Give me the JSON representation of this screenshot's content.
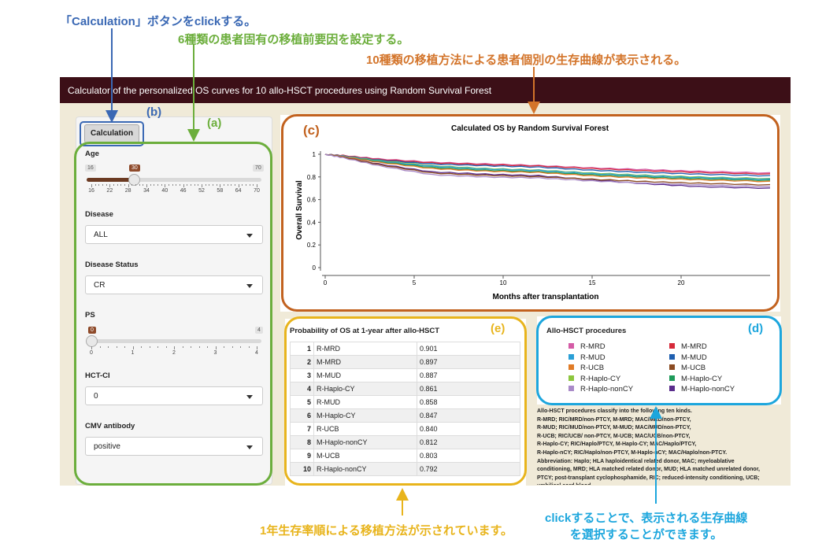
{
  "annotations": {
    "calc_click": "「Calculation」ボタンをclickする。",
    "set_factors": "6種類の患者固有の移植前要因を設定する。",
    "curves_shown": "10種類の移植方法による患者個別の生存曲線が表示される。",
    "ranked": "1年生存率順による移植方法が示されています。",
    "click_select_1": "clickすることで、表示される生存曲線",
    "click_select_2": "を選択することができます。"
  },
  "labels": {
    "a": "(a)",
    "b": "(b)",
    "c": "(c)",
    "d": "(d)",
    "e": "(e)"
  },
  "colors": {
    "blue": "#3a68b4",
    "green": "#6cae3c",
    "orange": "#c2621f",
    "yellow": "#e8b41c",
    "cyan": "#1ca6dd"
  },
  "app": {
    "title": "Calculator of the personalized OS curves for 10 allo-HSCT procedures using Random Survival Forest"
  },
  "sidebar": {
    "calc_button": "Calculation",
    "age": {
      "label": "Age",
      "min": "16",
      "max": "70",
      "value": "30",
      "ticks": [
        "16",
        "22",
        "28",
        "34",
        "40",
        "46",
        "52",
        "58",
        "64",
        "70"
      ]
    },
    "disease": {
      "label": "Disease",
      "value": "ALL"
    },
    "disease_status": {
      "label": "Disease Status",
      "value": "CR"
    },
    "ps": {
      "label": "PS",
      "min": "0",
      "max": "4",
      "value": "0",
      "ticks": [
        "0",
        "1",
        "2",
        "3",
        "4"
      ]
    },
    "hct_ci": {
      "label": "HCT-CI",
      "value": "0"
    },
    "cmv": {
      "label": "CMV antibody",
      "value": "positive"
    }
  },
  "chart_data": {
    "type": "line",
    "title": "Calculated OS by Random Survival Forest",
    "xlabel": "Months after transplantation",
    "ylabel": "Overall Survival",
    "xlim": [
      0,
      25
    ],
    "ylim": [
      0,
      1
    ],
    "xticks": [
      "0",
      "5",
      "10",
      "15",
      "20"
    ],
    "yticks": [
      "0",
      "0.2",
      "0.4",
      "0.6",
      "0.8",
      "1"
    ],
    "x": [
      0,
      1,
      3,
      6,
      9,
      12,
      15,
      18,
      21,
      25
    ],
    "series": [
      {
        "name": "R-MRD",
        "color": "#d45ba6",
        "values": [
          1,
          0.99,
          0.96,
          0.93,
          0.915,
          0.901,
          0.88,
          0.865,
          0.85,
          0.835
        ]
      },
      {
        "name": "M-MRD",
        "color": "#d62a3a",
        "values": [
          1,
          0.99,
          0.955,
          0.925,
          0.91,
          0.897,
          0.875,
          0.855,
          0.84,
          0.825
        ]
      },
      {
        "name": "M-MUD",
        "color": "#1f5fb0",
        "values": [
          1,
          0.985,
          0.95,
          0.915,
          0.9,
          0.887,
          0.86,
          0.84,
          0.825,
          0.81
        ]
      },
      {
        "name": "R-Haplo-CY",
        "color": "#8cc63e",
        "values": [
          1,
          0.985,
          0.945,
          0.9,
          0.875,
          0.861,
          0.835,
          0.815,
          0.8,
          0.785
        ]
      },
      {
        "name": "R-MUD",
        "color": "#2a9fd6",
        "values": [
          1,
          0.985,
          0.94,
          0.895,
          0.87,
          0.858,
          0.83,
          0.81,
          0.795,
          0.78
        ]
      },
      {
        "name": "M-Haplo-CY",
        "color": "#1e9a5a",
        "values": [
          1,
          0.98,
          0.935,
          0.885,
          0.86,
          0.847,
          0.82,
          0.8,
          0.785,
          0.77
        ]
      },
      {
        "name": "R-UCB",
        "color": "#e07b26",
        "values": [
          1,
          0.98,
          0.93,
          0.875,
          0.852,
          0.84,
          0.81,
          0.79,
          0.775,
          0.76
        ]
      },
      {
        "name": "M-Haplo-nonCY",
        "color": "#5a2d8c",
        "values": [
          1,
          0.975,
          0.915,
          0.845,
          0.825,
          0.812,
          0.775,
          0.74,
          0.715,
          0.7
        ]
      },
      {
        "name": "M-UCB",
        "color": "#8b4b22",
        "values": [
          1,
          0.975,
          0.91,
          0.835,
          0.815,
          0.803,
          0.78,
          0.76,
          0.745,
          0.73
        ]
      },
      {
        "name": "R-Haplo-nonCY",
        "color": "#a98ac8",
        "values": [
          1,
          0.97,
          0.9,
          0.82,
          0.8,
          0.792,
          0.765,
          0.745,
          0.73,
          0.715
        ]
      }
    ]
  },
  "table": {
    "title": "Probability of OS at 1-year after allo-HSCT",
    "rows": [
      {
        "rank": "1",
        "proc": "R-MRD",
        "prob": "0.901"
      },
      {
        "rank": "2",
        "proc": "M-MRD",
        "prob": "0.897"
      },
      {
        "rank": "3",
        "proc": "M-MUD",
        "prob": "0.887"
      },
      {
        "rank": "4",
        "proc": "R-Haplo-CY",
        "prob": "0.861"
      },
      {
        "rank": "5",
        "proc": "R-MUD",
        "prob": "0.858"
      },
      {
        "rank": "6",
        "proc": "M-Haplo-CY",
        "prob": "0.847"
      },
      {
        "rank": "7",
        "proc": "R-UCB",
        "prob": "0.840"
      },
      {
        "rank": "8",
        "proc": "M-Haplo-nonCY",
        "prob": "0.812"
      },
      {
        "rank": "9",
        "proc": "M-UCB",
        "prob": "0.803"
      },
      {
        "rank": "10",
        "proc": "R-Haplo-nonCY",
        "prob": "0.792"
      }
    ]
  },
  "legend": {
    "title": "Allo-HSCT procedures",
    "left": [
      {
        "name": "R-MRD",
        "color": "#d45ba6"
      },
      {
        "name": "R-MUD",
        "color": "#2a9fd6"
      },
      {
        "name": "R-UCB",
        "color": "#e07b26"
      },
      {
        "name": "R-Haplo-CY",
        "color": "#8cc63e"
      },
      {
        "name": "R-Haplo-nonCY",
        "color": "#a98ac8"
      }
    ],
    "right": [
      {
        "name": "M-MRD",
        "color": "#d62a3a"
      },
      {
        "name": "M-MUD",
        "color": "#1f5fb0"
      },
      {
        "name": "M-UCB",
        "color": "#8b4b22"
      },
      {
        "name": "M-Haplo-CY",
        "color": "#1e9a5a"
      },
      {
        "name": "M-Haplo-nonCY",
        "color": "#5a2d8c"
      }
    ]
  },
  "notes": [
    "Allo-HSCT procedures classify into the following ten kinds.",
    "R-MRD; RIC/MRD/non-PTCY, M-MRD; MAC/MRD/non-PTCY,",
    "R-MUD; RIC/MUD/non-PTCY, M-MUD; MAC/MUD/non-PTCY,",
    "R-UCB; RIC/UCB/ non-PTCY, M-UCB; MAC/UCB/non-PTCY,",
    "R-Haplo-CY; RIC/Haplo/PTCY, M-Haplo-CY; MAC/Haplo/PTCY,",
    "R-Haplo-nCY; RIC/Haplo/non-PTCY, M-Haplo-nCY; MAC/Haplo/non-PTCY.",
    "Abbreviation: Haplo; HLA haploidentical related donor, MAC; myeloablative",
    "conditioning, MRD; HLA matched related donor, MUD; HLA matched unrelated donor,",
    "PTCY; post-transplant cyclophosphamide, RIC; reduced-intensity conditioning, UCB;",
    "umbilical cord blood."
  ]
}
